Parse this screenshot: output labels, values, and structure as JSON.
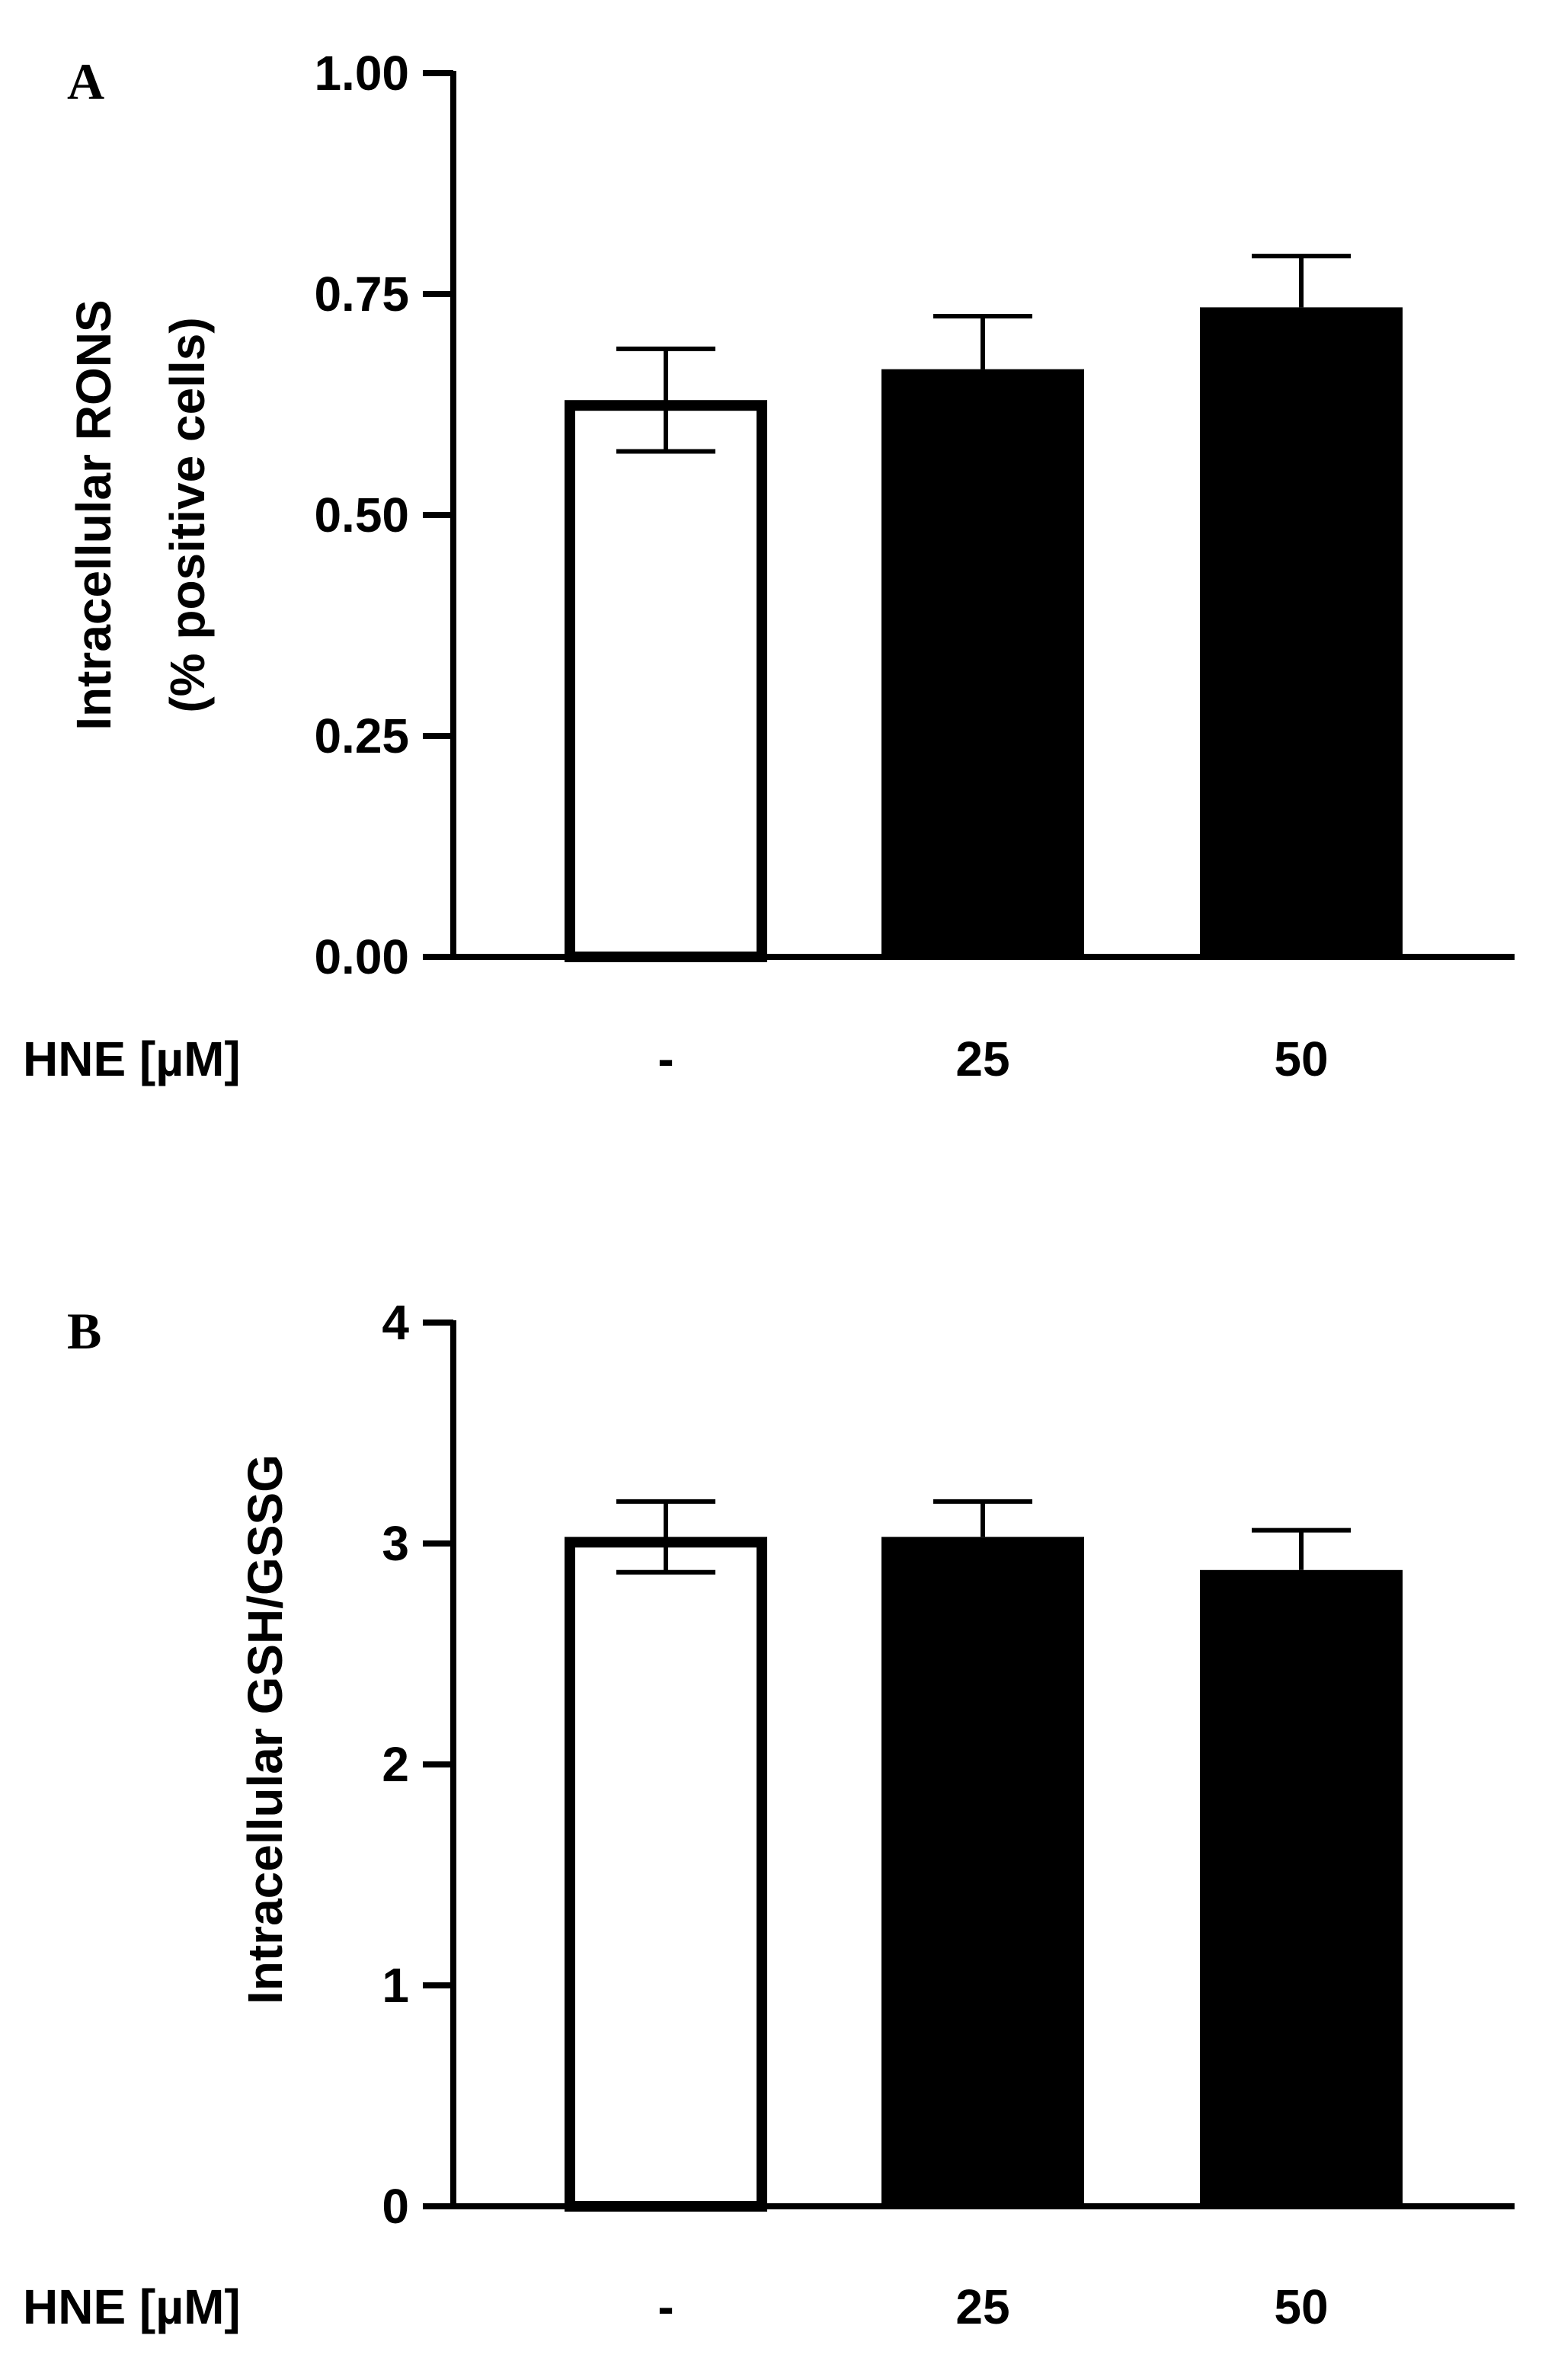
{
  "chart_data": [
    {
      "type": "bar",
      "panel": "A",
      "ylabel": [
        "Intracellular RONS",
        "(% positive cells)"
      ],
      "row_label": "HNE [µM]",
      "categories": [
        "-",
        "25",
        "50"
      ],
      "values": [
        0.63,
        0.665,
        0.735
      ],
      "errors": [
        0.058,
        0.06,
        0.058
      ],
      "bar_fill": [
        "#ffffff",
        "#000000",
        "#000000"
      ],
      "ylim": [
        0,
        1.0
      ],
      "yticks": [
        "0.00",
        "0.25",
        "0.50",
        "0.75",
        "1.00"
      ],
      "ytick_values": [
        0,
        0.25,
        0.5,
        0.75,
        1.0
      ],
      "grid": false
    },
    {
      "type": "bar",
      "panel": "B",
      "ylabel": [
        "Intracellular GSH/GSSG"
      ],
      "row_label": "HNE [µM]",
      "categories": [
        "-",
        "25",
        "50"
      ],
      "values": [
        3.03,
        3.03,
        2.88
      ],
      "errors": [
        0.16,
        0.16,
        0.18
      ],
      "bar_fill": [
        "#ffffff",
        "#000000",
        "#000000"
      ],
      "ylim": [
        0,
        4
      ],
      "yticks": [
        "0",
        "1",
        "2",
        "3",
        "4"
      ],
      "ytick_values": [
        0,
        1,
        2,
        3,
        4
      ],
      "grid": false
    }
  ]
}
